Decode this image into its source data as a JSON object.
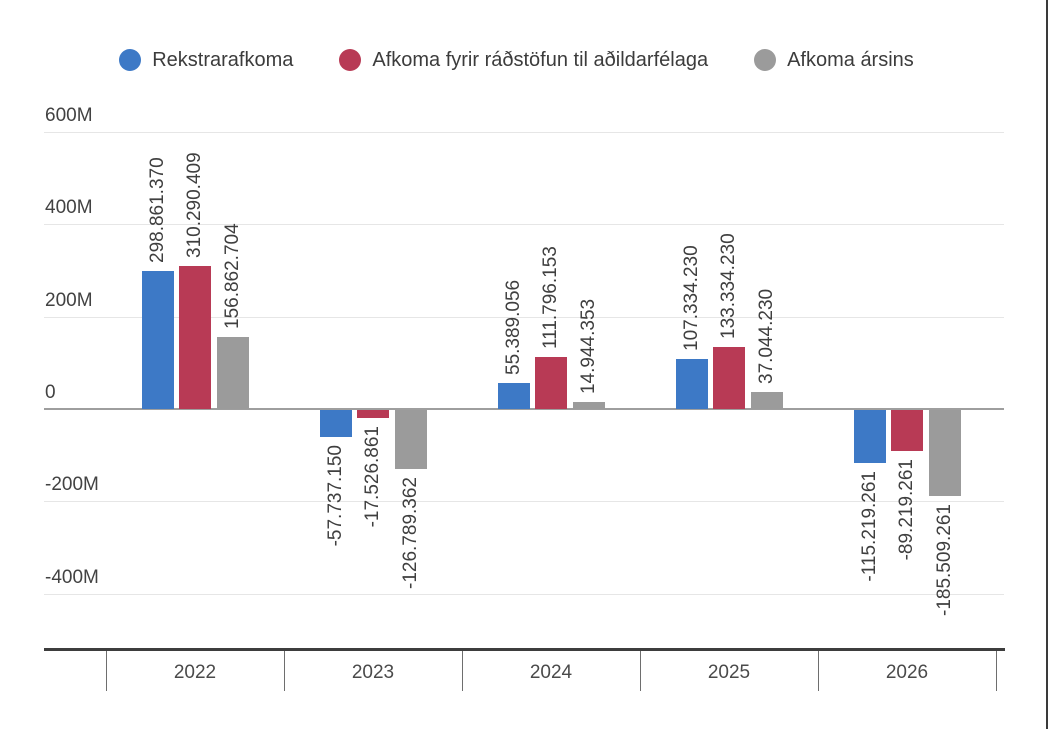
{
  "chart_data": {
    "type": "bar",
    "title": "",
    "legend_position": "top",
    "grid": true,
    "categories": [
      "2022",
      "2023",
      "2024",
      "2025",
      "2026"
    ],
    "series": [
      {
        "name": "Rekstrarafkoma",
        "color": "#3d79c6",
        "values": [
          298861370,
          -57737150,
          55389056,
          107334230,
          -115219261
        ],
        "labels": [
          "298.861.370",
          "-57.737.150",
          "55.389.056",
          "107.334.230",
          "-115.219.261"
        ]
      },
      {
        "name": "Afkoma fyrir ráðstöfun til aðildarfélaga",
        "color": "#b83a55",
        "values": [
          310290409,
          -17526861,
          111796153,
          133334230,
          -89219261
        ],
        "labels": [
          "310.290.409",
          "-17.526.861",
          "111.796.153",
          "133.334.230",
          "-89.219.261"
        ]
      },
      {
        "name": "Afkoma ársins",
        "color": "#9b9b9b",
        "values": [
          156862704,
          -126789362,
          14944353,
          37044230,
          -185509261
        ],
        "labels": [
          "156.862.704",
          "-126.789.362",
          "14.944.353",
          "37.044.230",
          "-185.509.261"
        ]
      }
    ],
    "y_axis": {
      "ylim": [
        -520000000,
        630000000
      ],
      "ticks": [
        {
          "label": "600M",
          "value": 600000000
        },
        {
          "label": "400M",
          "value": 400000000
        },
        {
          "label": "200M",
          "value": 200000000
        },
        {
          "label": "0",
          "value": 0
        },
        {
          "label": "-200M",
          "value": -200000000
        },
        {
          "label": "-400M",
          "value": -400000000
        }
      ]
    }
  }
}
